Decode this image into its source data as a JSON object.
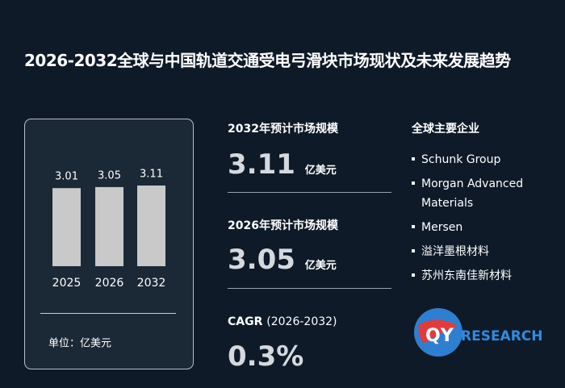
{
  "title": "2026-2032全球与中国轨道交通受电弓滑块市场现状及未来发展趋势",
  "chart_data": {
    "type": "bar",
    "categories": [
      "2025",
      "2026",
      "2032"
    ],
    "values": [
      3.01,
      3.05,
      3.11
    ],
    "color": "#c9c9c9",
    "unit_label": "单位：亿美元"
  },
  "stats": [
    {
      "label": "2032年预计市场规模",
      "value": "3.11",
      "unit": "亿美元"
    },
    {
      "label": "2026年预计市场规模",
      "value": "3.05",
      "unit": "亿美元"
    }
  ],
  "cagr": {
    "label": "CAGR",
    "period": "(2026-2032)",
    "value": "0.3%"
  },
  "companies": {
    "title": "全球主要企业",
    "items": [
      "Schunk Group",
      "Morgan Advanced Materials",
      "Mersen",
      "溢洋墨根材料",
      "苏州东南佳新材料"
    ]
  },
  "logo": {
    "mark": "QY",
    "text": "RESEARCH"
  }
}
